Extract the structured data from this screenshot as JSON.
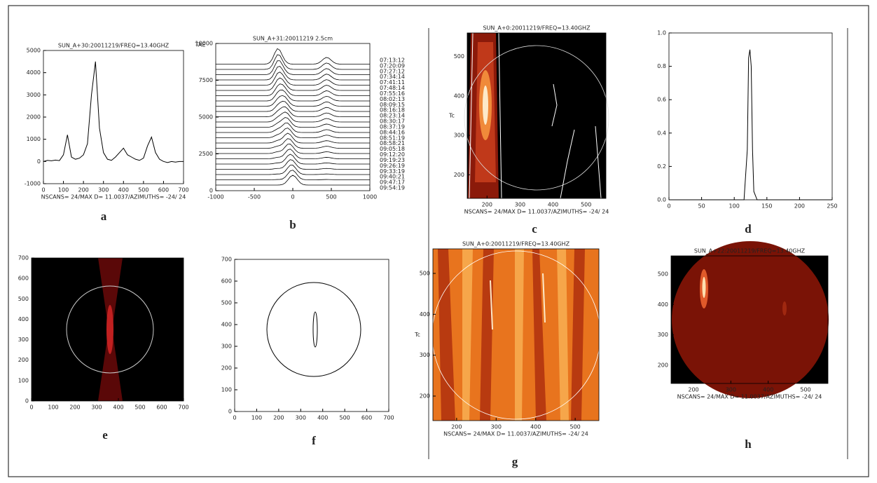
{
  "chart_data": [
    {
      "type": "line",
      "label": "a",
      "title": "SUN_A+30:20011219/FREQ=13.40GHZ",
      "footer": "NSCANS= 24/MAX D= 11.0037/AZIMUTHS= -24/ 24",
      "x": [
        0,
        20,
        40,
        60,
        80,
        100,
        120,
        140,
        160,
        180,
        200,
        220,
        240,
        260,
        280,
        300,
        320,
        340,
        360,
        380,
        400,
        420,
        440,
        460,
        480,
        500,
        520,
        540,
        560,
        580,
        600,
        620,
        640,
        660,
        680,
        700
      ],
      "series": [
        {
          "color": "#000000",
          "values": [
            0,
            50,
            30,
            60,
            40,
            300,
            1200,
            200,
            100,
            150,
            300,
            800,
            3000,
            4500,
            1500,
            400,
            100,
            50,
            200,
            400,
            600,
            300,
            200,
            100,
            50,
            150,
            700,
            1100,
            400,
            100,
            0,
            -50,
            0,
            -30,
            0,
            0
          ]
        }
      ],
      "xlim": [
        0,
        700
      ],
      "xticks": [
        0,
        100,
        200,
        300,
        400,
        500,
        600,
        700
      ],
      "ylim": [
        -1000,
        5000
      ],
      "yticks": [
        -1000,
        0,
        1000,
        2000,
        3000,
        4000,
        5000
      ]
    },
    {
      "type": "waterfall",
      "label": "b",
      "title": "SUN_A+31:20011219 2.5cm",
      "ylabel": "TAE",
      "annotations": [
        "09:54:19",
        "09:47:17",
        "09:40:21",
        "09:33:19",
        "09:26:19",
        "09:19:23",
        "09:12:20",
        "09:05:18",
        "08:58:21",
        "08:51:19",
        "08:44:16",
        "08:37:19",
        "08:30:17",
        "08:23:14",
        "08:16:18",
        "08:09:15",
        "08:02:13",
        "07:55:16",
        "07:48:14",
        "07:41:11",
        "07:34:14",
        "07:27:12",
        "07:20:09",
        "07:13:12"
      ],
      "xlim": [
        -1000,
        1000
      ],
      "xticks": [
        -1000,
        -500,
        0,
        500,
        1000
      ],
      "ylim": [
        0,
        10000
      ],
      "yticks": [
        0,
        2500,
        5000,
        7500,
        10000
      ]
    },
    {
      "type": "heatmap",
      "label": "c",
      "title": "SUN_A+0:20011219/FREQ=13.40GHZ",
      "footer": "NSCANS= 24/MAX D= 11.0037/AZIMUTHS= -24/ 24",
      "ylabel": "Tc",
      "xlim": [
        140,
        560
      ],
      "xticks": [
        200,
        300,
        400,
        500
      ],
      "ylim": [
        140,
        560
      ],
      "yticks": [
        200,
        300,
        400,
        500
      ]
    },
    {
      "type": "line",
      "label": "d",
      "x": [
        0,
        50,
        100,
        115,
        120,
        122,
        124,
        126,
        128,
        130,
        135,
        150,
        200,
        250
      ],
      "series": [
        {
          "color": "#000000",
          "values": [
            0,
            0,
            0,
            0,
            0.3,
            0.85,
            0.9,
            0.8,
            0.3,
            0.05,
            0,
            0,
            0,
            0
          ]
        }
      ],
      "xlim": [
        0,
        250
      ],
      "xticks": [
        0,
        50,
        100,
        150,
        200,
        250
      ],
      "ylim": [
        0,
        1
      ],
      "yticks": [
        {
          "value": 0,
          "label": "0.0"
        },
        {
          "value": 0.2,
          "label": "0.2"
        },
        {
          "value": 0.4,
          "label": "0.4"
        },
        {
          "value": 0.6,
          "label": "0.6"
        },
        {
          "value": 0.8,
          "label": "0.8"
        },
        {
          "value": 1,
          "label": "1.0"
        }
      ]
    },
    {
      "type": "heatmap",
      "label": "e",
      "xlim": [
        0,
        700
      ],
      "xticks": [
        0,
        100,
        200,
        300,
        400,
        500,
        600,
        700
      ],
      "ylim": [
        0,
        700
      ],
      "yticks": [
        0,
        100,
        200,
        300,
        400,
        500,
        600,
        700
      ]
    },
    {
      "type": "heatmap",
      "label": "f",
      "xlim": [
        0,
        700
      ],
      "xticks": [
        0,
        100,
        200,
        300,
        400,
        500,
        600,
        700
      ],
      "ylim": [
        0,
        700
      ],
      "yticks": [
        0,
        100,
        200,
        300,
        400,
        500,
        600,
        700
      ]
    },
    {
      "type": "heatmap",
      "label": "g",
      "title": "SUN_A+0:20011219/FREQ=13.40GHZ",
      "footer": "NSCANS= 24/MAX D= 11.0037/AZIMUTHS= -24/ 24",
      "ylabel": "Tc",
      "xlim": [
        140,
        560
      ],
      "xticks": [
        200,
        300,
        400,
        500
      ],
      "ylim": [
        140,
        560
      ],
      "yticks": [
        200,
        300,
        400,
        500
      ]
    },
    {
      "type": "heatmap",
      "label": "h",
      "title": "SUN_A+22:20011219/FREQ=13.40GHZ",
      "footer": "NSCANS= 24/MAX D= 11.0037/AZIMUTHS= -24/ 24",
      "xlim": [
        140,
        560
      ],
      "xticks": [
        200,
        300,
        400,
        500
      ],
      "ylim": [
        140,
        560
      ],
      "yticks": [
        200,
        300,
        400,
        500
      ]
    }
  ]
}
